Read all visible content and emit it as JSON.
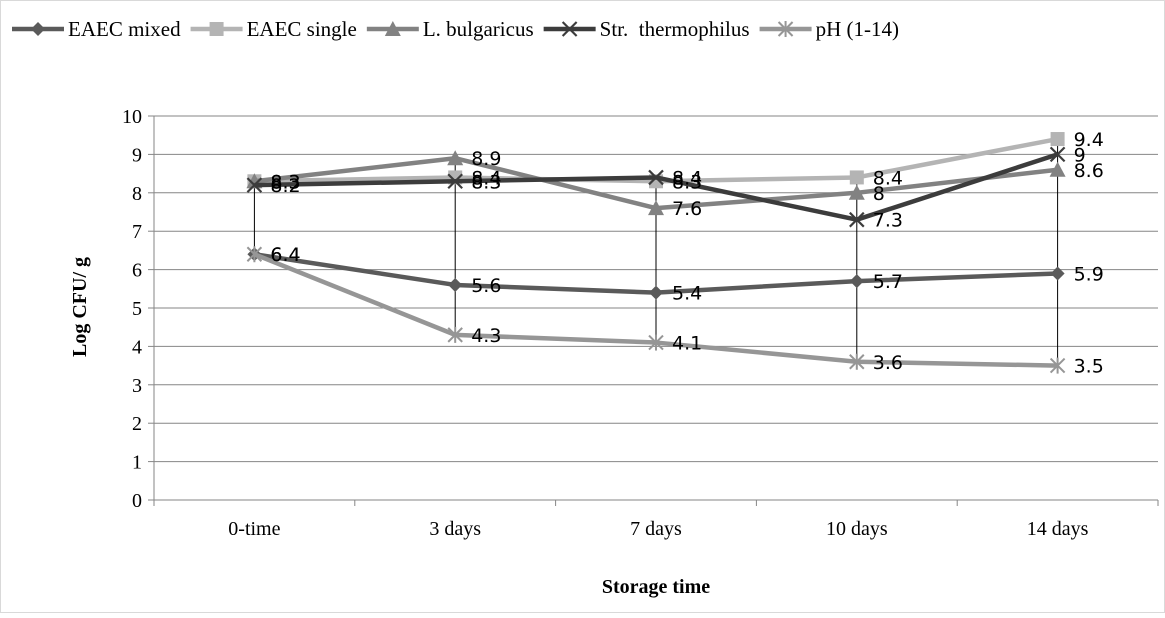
{
  "chart_data": {
    "type": "line",
    "title": "",
    "xlabel": "Storage time",
    "ylabel": "Log CFU/ g",
    "categories": [
      "0-time",
      "3 days",
      "7 days",
      "10 days",
      "14 days"
    ],
    "ylim": [
      0,
      10
    ],
    "yticks": [
      0,
      1,
      2,
      3,
      4,
      5,
      6,
      7,
      8,
      9,
      10
    ],
    "grid": "horizontal",
    "legend": "top",
    "drop_lines": true,
    "series": [
      {
        "name": "EAEC mixed",
        "values": [
          6.4,
          5.6,
          5.4,
          5.7,
          5.9
        ],
        "color": "#5a5a5a",
        "marker": "diamond",
        "labels": [
          "6.4",
          "5.6",
          "5.4",
          "5.7",
          "5.9"
        ]
      },
      {
        "name": "EAEC single",
        "values": [
          8.3,
          8.4,
          8.3,
          8.4,
          9.4
        ],
        "color": "#b4b4b4",
        "marker": "square",
        "labels": [
          "8.3",
          "8.4",
          "8.3",
          "8.4",
          "9.4"
        ]
      },
      {
        "name": "L. bulgaricus",
        "values": [
          8.3,
          8.9,
          7.6,
          8.0,
          8.6
        ],
        "color": "#828282",
        "marker": "triangle",
        "labels": [
          "8.3",
          "8.9",
          "7.6",
          "8",
          "8.6"
        ]
      },
      {
        "name": "Str.  thermophilus",
        "values": [
          8.2,
          8.3,
          8.4,
          7.3,
          9.0
        ],
        "color": "#3c3c3c",
        "marker": "x",
        "labels": [
          "8.2",
          "8.3",
          "8.4",
          "7.3",
          "9"
        ]
      },
      {
        "name": "pH (1-14)",
        "values": [
          6.4,
          4.3,
          4.1,
          3.6,
          3.5
        ],
        "color": "#969696",
        "marker": "asterisk",
        "labels": [
          "6.4",
          "4.3",
          "4.1",
          "3.6",
          "3.5"
        ]
      }
    ]
  }
}
